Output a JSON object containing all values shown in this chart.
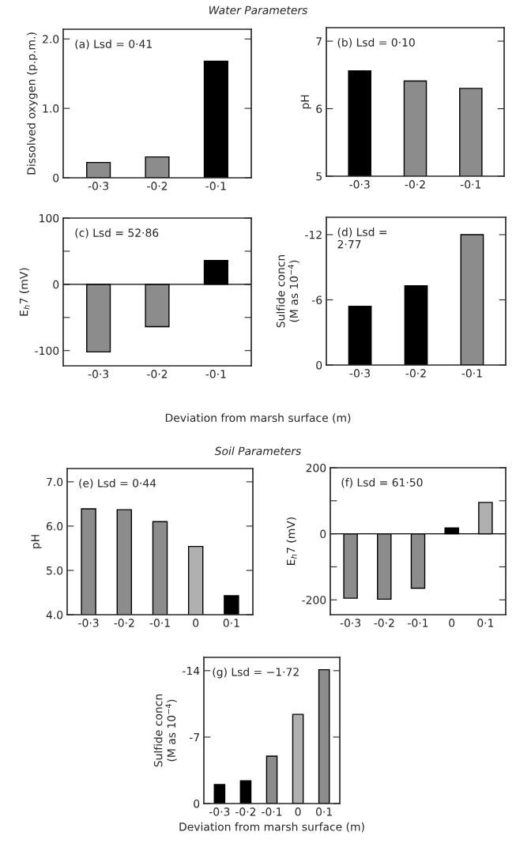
{
  "chart_data": [
    {
      "type": "bar",
      "title": "Water Parameters",
      "categories": [
        "-0·3",
        "-0·2",
        "-0·1"
      ],
      "values": [
        0.22,
        0.3,
        1.68
      ],
      "colors": [
        "#8c8c8c",
        "#8c8c8c",
        "#000000"
      ],
      "ylabel": "Dissolved oxygen (p.p.m.)",
      "ylim": [
        0,
        2.14
      ],
      "yticks": [
        0,
        {
          "value": 1,
          "label": "1.0"
        },
        {
          "value": 2,
          "label": "2.0"
        }
      ],
      "annotations": [
        "(a) Lsd = 0·41"
      ]
    },
    {
      "type": "bar",
      "categories": [
        "-0·3",
        "-0·2",
        "-0·1"
      ],
      "values": [
        6.56,
        6.41,
        6.3
      ],
      "colors": [
        "#000000",
        "#8c8c8c",
        "#8c8c8c"
      ],
      "ylabel": "pH",
      "ylim": [
        5,
        7.2
      ],
      "yticks": [
        5,
        6,
        7
      ],
      "annotations": [
        "(b) Lsd = 0·10"
      ]
    },
    {
      "type": "bar",
      "categories": [
        "-0·3",
        "-0·2",
        "-0·1"
      ],
      "values": [
        -102,
        -64,
        36
      ],
      "colors": [
        "#8c8c8c",
        "#8c8c8c",
        "#000000"
      ],
      "ylabel": "E$_{h}$7 (mV)",
      "xlabel": "Deviation from marsh surface (m)",
      "ylim": [
        -123,
        100
      ],
      "yticks": [
        -100,
        {
          "value": -50,
          "label": null
        },
        0,
        {
          "value": 50,
          "label": null
        },
        100
      ],
      "ref_lines": [
        {
          "axis": "y",
          "value": 0
        }
      ],
      "annotations": [
        "(c) Lsd = 52·86"
      ]
    },
    {
      "type": "bar",
      "categories": [
        "-0·3",
        "-0·2",
        "-0·1"
      ],
      "values": [
        -5.4,
        -7.3,
        -12.0
      ],
      "colors": [
        "#000000",
        "#000000",
        "#8c8c8c"
      ],
      "ylabel": "Sulfide concn\n(M as 10$^{−4}$)",
      "ylim": [
        0,
        -13.6
      ],
      "yticks": [
        0,
        -6,
        -12
      ],
      "annotations": [
        "(d) Lsd =\n2·77"
      ]
    },
    {
      "type": "bar",
      "title": "Soil Parameters",
      "categories": [
        "-0·3",
        "-0·2",
        "-0·1",
        "0",
        "0·1"
      ],
      "values": [
        6.39,
        6.37,
        6.1,
        5.54,
        4.43
      ],
      "colors": [
        "#8c8c8c",
        "#8c8c8c",
        "#8c8c8c",
        "#b0b0b0",
        "#000000"
      ],
      "ylabel": "pH",
      "ylim": [
        4,
        7.3
      ],
      "yticks": [
        {
          "value": 4,
          "label": "4.0"
        },
        {
          "value": 5,
          "label": "5.0"
        },
        {
          "value": 6,
          "label": "6.0"
        },
        {
          "value": 7,
          "label": "7.0"
        }
      ],
      "annotations": [
        "(e) Lsd = 0·44"
      ]
    },
    {
      "type": "bar",
      "categories": [
        "-0·3",
        "-0·2",
        "-0·1",
        "0",
        "0·1"
      ],
      "values": [
        -195,
        -198,
        -165,
        18,
        95
      ],
      "colors": [
        "#8c8c8c",
        "#8c8c8c",
        "#8c8c8c",
        "#000000",
        "#b0b0b0"
      ],
      "ylabel": "E$_{h}$7 (mV)",
      "ylim": [
        -245,
        200
      ],
      "yticks": [
        -200,
        {
          "value": -100,
          "label": null
        },
        0,
        {
          "value": 100,
          "label": null
        },
        200
      ],
      "ref_lines": [
        {
          "axis": "y",
          "value": 0
        }
      ],
      "annotations": [
        "(f) Lsd = 61·50"
      ]
    },
    {
      "type": "bar",
      "categories": [
        "-0·3",
        "-0·2",
        "-0·1",
        "0",
        "0·1"
      ],
      "values": [
        -2.0,
        -2.4,
        -5.0,
        -9.4,
        -14.1
      ],
      "colors": [
        "#000000",
        "#000000",
        "#8c8c8c",
        "#b0b0b0",
        "#8c8c8c"
      ],
      "ylabel": "Sulfide concn\n(M as 10$^{−4}$)",
      "xlabel": "Deviation from marsh surface (m)",
      "ylim": [
        0,
        -15.4
      ],
      "yticks": [
        0,
        -7,
        -14
      ],
      "annotations": [
        "(g) Lsd = −1·72"
      ]
    }
  ]
}
